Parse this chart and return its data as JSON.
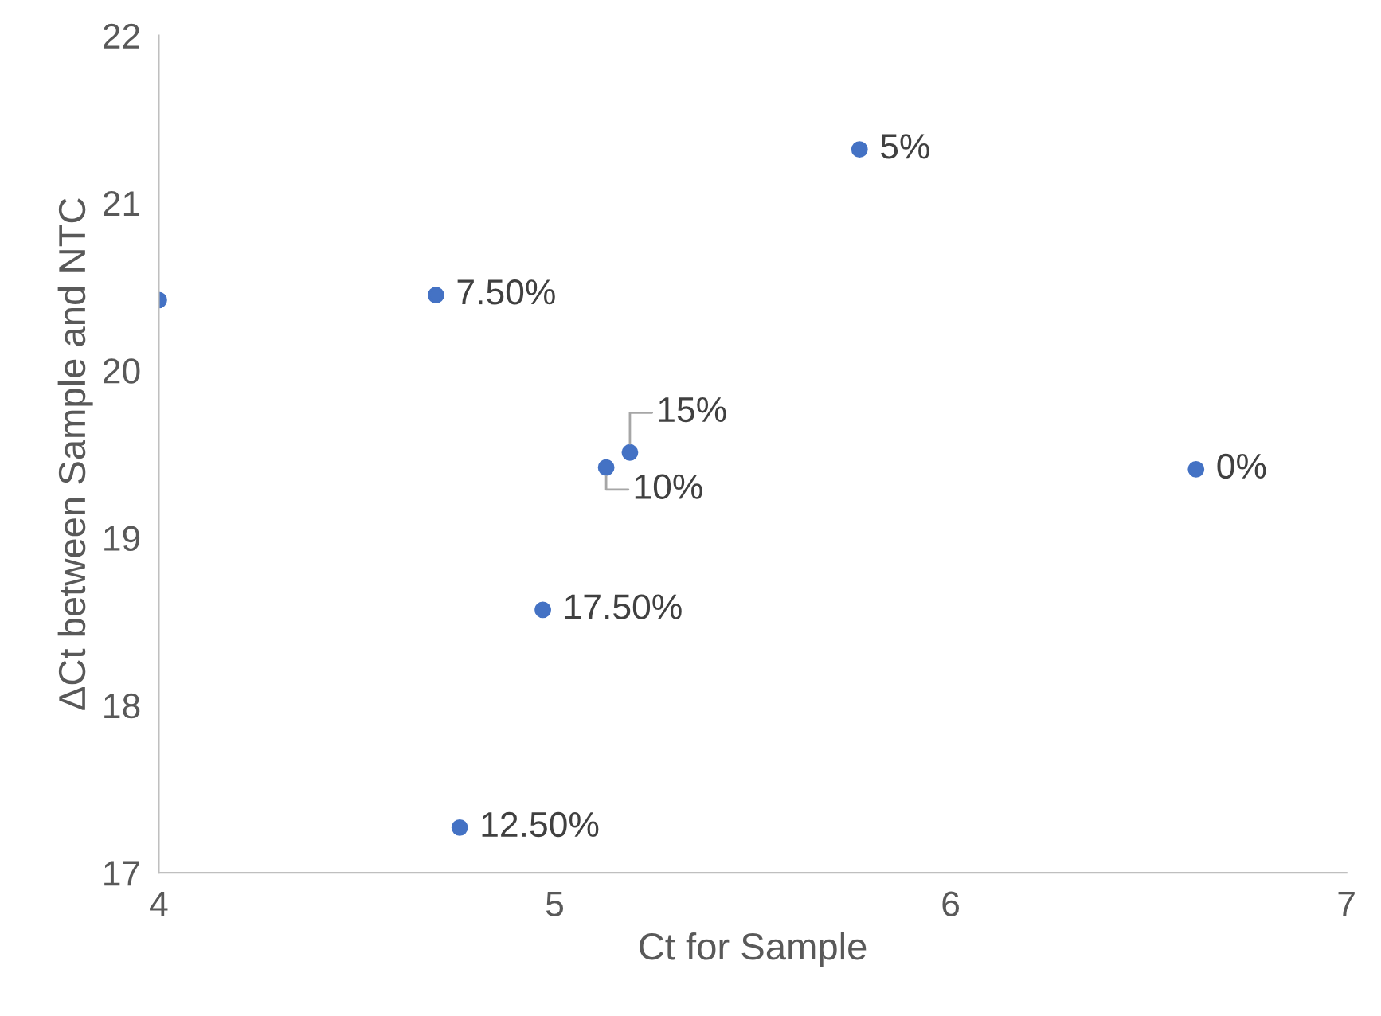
{
  "chart_data": {
    "type": "scatter",
    "xlabel": "Ct for Sample",
    "ylabel": "ΔCt between Sample and NTC",
    "x": [
      4.0,
      4.7,
      5.77,
      5.19,
      5.13,
      6.62,
      4.97,
      4.76
    ],
    "values": [
      20.42,
      20.45,
      21.32,
      19.51,
      19.42,
      19.41,
      18.57,
      17.27
    ],
    "color": "#4472c4",
    "marker": "circle",
    "grid": false,
    "legend": false,
    "xlim": [
      4,
      7
    ],
    "xticks": [
      4,
      5,
      6,
      7
    ],
    "ylim": [
      17,
      22
    ],
    "yticks": [
      17,
      18,
      19,
      20,
      21,
      22
    ],
    "annotations": [
      {
        "text": "7.50%",
        "x": 4.7,
        "y": 20.45
      },
      {
        "text": "5%",
        "x": 5.77,
        "y": 21.32
      },
      {
        "text": "15%",
        "x": 5.19,
        "y": 19.51
      },
      {
        "text": "10%",
        "x": 5.13,
        "y": 19.42
      },
      {
        "text": "0%",
        "x": 6.62,
        "y": 19.41
      },
      {
        "text": "17.50%",
        "x": 4.97,
        "y": 18.57
      },
      {
        "text": "12.50%",
        "x": 4.76,
        "y": 17.27
      }
    ]
  }
}
